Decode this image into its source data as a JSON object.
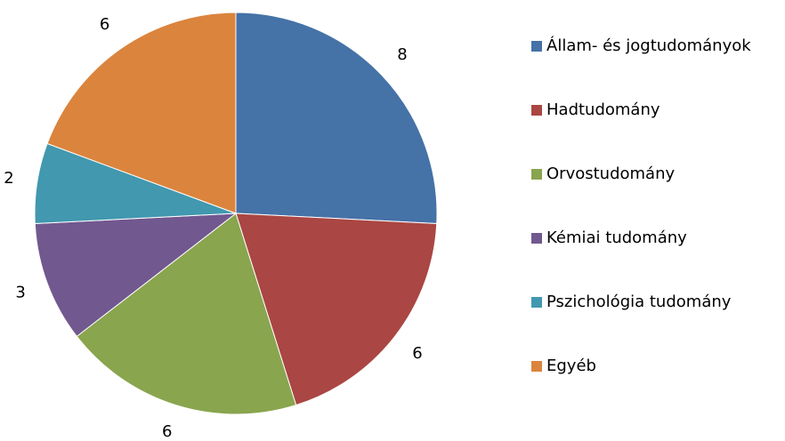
{
  "chart_data": {
    "type": "pie",
    "categories": [
      "Állam- és jogtudományok",
      "Hadtudomány",
      "Orvostudomány",
      "Kémiai tudomány",
      "Pszichológia tudomány",
      "Egyéb"
    ],
    "values": [
      8,
      6,
      6,
      3,
      2,
      6
    ],
    "colors": [
      "#4572a7",
      "#aa4643",
      "#89a54e",
      "#71588f",
      "#4198af",
      "#db843d"
    ],
    "legend": "right"
  }
}
